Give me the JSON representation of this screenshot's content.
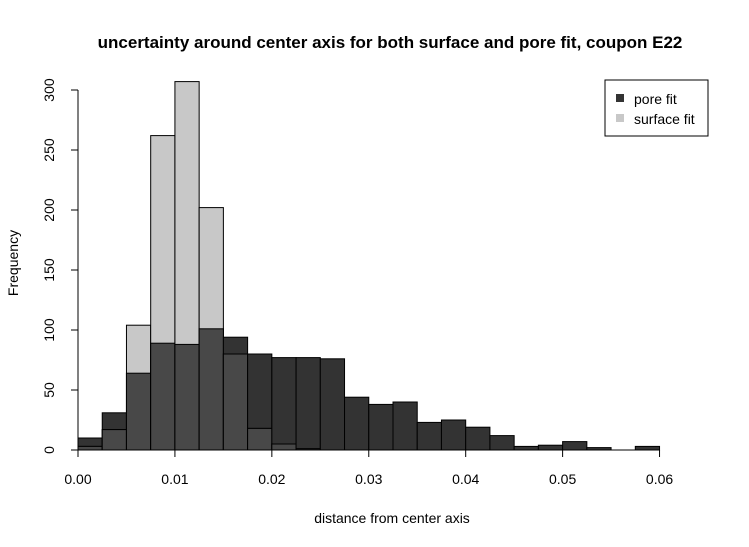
{
  "chart_data": {
    "type": "bar",
    "title": "uncertainty around center axis for both surface and pore fit, coupon E22",
    "xlabel": "distance from center axis",
    "ylabel": "Frequency",
    "xlim": [
      0,
      0.065
    ],
    "ylim": [
      0,
      300
    ],
    "bin_width": 0.0025,
    "x_ticks": [
      0.0,
      0.01,
      0.02,
      0.03,
      0.04,
      0.05,
      0.06
    ],
    "x_tick_labels": [
      "0.00",
      "0.01",
      "0.02",
      "0.03",
      "0.04",
      "0.05",
      "0.06"
    ],
    "y_ticks": [
      0,
      50,
      100,
      150,
      200,
      250,
      300
    ],
    "y_tick_labels": [
      "0",
      "50",
      "100",
      "150",
      "200",
      "250",
      "300"
    ],
    "legend_position": "top-right",
    "bin_starts": [
      0.0,
      0.0025,
      0.005,
      0.0075,
      0.01,
      0.0125,
      0.015,
      0.0175,
      0.02,
      0.0225,
      0.025,
      0.0275,
      0.03,
      0.0325,
      0.035,
      0.0375,
      0.04,
      0.0425,
      0.045,
      0.0475,
      0.05,
      0.0525,
      0.055,
      0.0575,
      0.06
    ],
    "series": [
      {
        "name": "pore fit",
        "color": "#333333",
        "values": [
          10,
          31,
          64,
          89,
          88,
          101,
          94,
          80,
          77,
          77,
          76,
          44,
          38,
          40,
          23,
          25,
          19,
          12,
          3,
          4,
          7,
          2,
          0,
          3,
          0
        ]
      },
      {
        "name": "surface fit",
        "color": "#c8c8c8",
        "values": [
          3,
          17,
          104,
          262,
          307,
          202,
          80,
          18,
          5,
          1,
          0,
          0,
          0,
          0,
          0,
          0,
          0,
          0,
          0,
          0,
          0,
          0,
          0,
          0,
          0
        ]
      }
    ],
    "overlap_color": "#484848"
  }
}
